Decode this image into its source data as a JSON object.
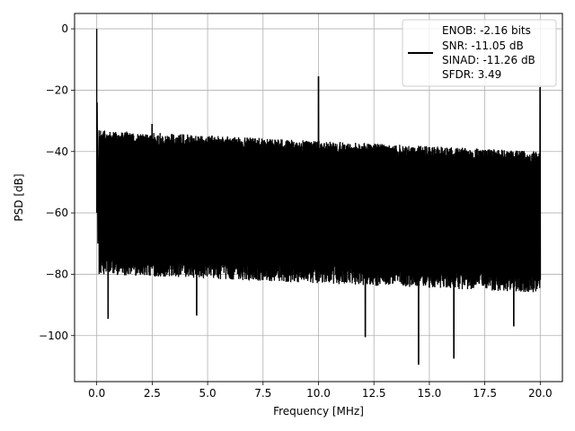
{
  "chart_data": {
    "type": "line",
    "title": "",
    "xlabel": "Frequency [MHz]",
    "ylabel": "PSD [dB]",
    "xlim": [
      -1.0,
      21.0
    ],
    "ylim": [
      -115,
      5
    ],
    "x_ticks": [
      0.0,
      2.5,
      5.0,
      7.5,
      10.0,
      12.5,
      15.0,
      17.5,
      20.0
    ],
    "x_tick_labels": [
      "0.0",
      "2.5",
      "5.0",
      "7.5",
      "10.0",
      "12.5",
      "15.0",
      "17.5",
      "20.0"
    ],
    "y_ticks": [
      0,
      -20,
      -40,
      -60,
      -80,
      -100
    ],
    "y_tick_labels": [
      "0",
      "−20",
      "−40",
      "−60",
      "−80",
      "−100"
    ],
    "grid": true,
    "legend_position": "top-right",
    "line_color": "#000000",
    "noise_floor": {
      "upper_envelope_db": [
        -33,
        -40
      ],
      "lower_envelope_db": [
        -77,
        -83
      ],
      "x_range": [
        0.1,
        20.0
      ]
    },
    "peaks": [
      {
        "x": 0.0,
        "y": 0.0
      },
      {
        "x": 2.5,
        "y": -31
      },
      {
        "x": 10.0,
        "y": -15.5
      },
      {
        "x": 20.0,
        "y": -19
      }
    ],
    "dips": [
      {
        "x": 0.5,
        "y": -94.5
      },
      {
        "x": 4.5,
        "y": -93.5
      },
      {
        "x": 12.1,
        "y": -100.5
      },
      {
        "x": 14.5,
        "y": -109.5
      },
      {
        "x": 16.1,
        "y": -107.5
      },
      {
        "x": 18.8,
        "y": -97
      }
    ],
    "series": [
      {
        "legend_lines": [
          "ENOB: -2.16 bits",
          "SNR: -11.05 dB",
          "SINAD: -11.26 dB",
          "SFDR: 3.49"
        ]
      }
    ]
  }
}
